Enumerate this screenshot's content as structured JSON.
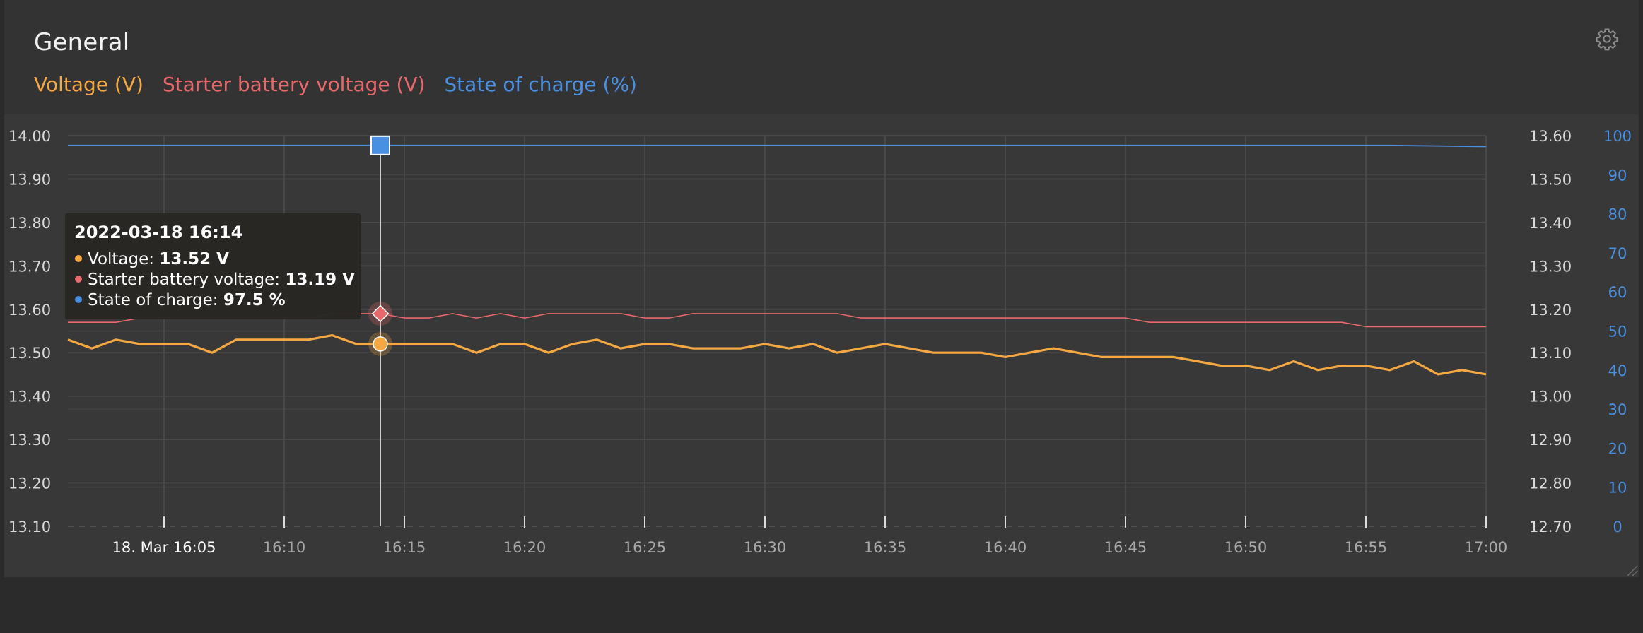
{
  "panel": {
    "title": "General",
    "settings_icon": "gear-icon"
  },
  "legend": [
    {
      "label": "Voltage (V)",
      "color": "#f5a742"
    },
    {
      "label": "Starter battery voltage (V)",
      "color": "#e8696b"
    },
    {
      "label": "State of charge (%)",
      "color": "#4a90e2"
    }
  ],
  "tooltip": {
    "title": "2022-03-18 16:14",
    "rows": [
      {
        "label": "Voltage: ",
        "value": "13.52 V",
        "color": "#f5a742"
      },
      {
        "label": "Starter battery voltage: ",
        "value": "13.19 V",
        "color": "#e8696b"
      },
      {
        "label": "State of charge: ",
        "value": "97.5 %",
        "color": "#4a90e2"
      }
    ]
  },
  "chart_data": {
    "type": "line",
    "x_tick_labels": [
      "18. Mar 16:05",
      "16:10",
      "16:15",
      "16:20",
      "16:25",
      "16:30",
      "16:35",
      "16:40",
      "16:45",
      "16:50",
      "16:55",
      "17:00"
    ],
    "x_tick_minutes": [
      5,
      10,
      15,
      20,
      25,
      30,
      35,
      40,
      45,
      50,
      55,
      60
    ],
    "x_range": [
      "16:01",
      "17:00"
    ],
    "cursor_time": "16:14",
    "axes": {
      "left": {
        "range": [
          13.1,
          14.0
        ],
        "ticks": [
          "13.10",
          "13.20",
          "13.30",
          "13.40",
          "13.50",
          "13.60",
          "13.70",
          "13.80",
          "13.90",
          "14.00"
        ]
      },
      "right": {
        "range": [
          12.7,
          13.6
        ],
        "ticks": [
          "12.70",
          "12.80",
          "12.90",
          "13.00",
          "13.10",
          "13.20",
          "13.30",
          "13.40",
          "13.50",
          "13.60"
        ]
      },
      "soc": {
        "range": [
          0,
          100
        ],
        "ticks": [
          "0",
          "10",
          "20",
          "30",
          "40",
          "50",
          "60",
          "70",
          "80",
          "90",
          "100"
        ]
      }
    },
    "grid": true,
    "series": [
      {
        "name": "Voltage (V)",
        "axis": "left",
        "color": "#f5a742",
        "x": [
          1,
          2,
          3,
          4,
          5,
          6,
          7,
          8,
          9,
          10,
          11,
          12,
          13,
          14,
          15,
          16,
          17,
          18,
          19,
          20,
          21,
          22,
          23,
          24,
          25,
          26,
          27,
          28,
          29,
          30,
          31,
          32,
          33,
          34,
          35,
          36,
          37,
          38,
          39,
          40,
          41,
          42,
          43,
          44,
          45,
          46,
          47,
          48,
          49,
          50,
          51,
          52,
          53,
          54,
          55,
          56,
          57,
          58,
          59,
          60
        ],
        "y": [
          13.53,
          13.51,
          13.53,
          13.52,
          13.52,
          13.52,
          13.5,
          13.53,
          13.53,
          13.53,
          13.53,
          13.54,
          13.52,
          13.52,
          13.52,
          13.52,
          13.52,
          13.5,
          13.52,
          13.52,
          13.5,
          13.52,
          13.53,
          13.51,
          13.52,
          13.52,
          13.51,
          13.51,
          13.51,
          13.52,
          13.51,
          13.52,
          13.5,
          13.51,
          13.52,
          13.51,
          13.5,
          13.5,
          13.5,
          13.49,
          13.5,
          13.51,
          13.5,
          13.49,
          13.49,
          13.49,
          13.49,
          13.48,
          13.47,
          13.47,
          13.46,
          13.48,
          13.46,
          13.47,
          13.47,
          13.46,
          13.48,
          13.45,
          13.46,
          13.45
        ]
      },
      {
        "name": "Starter battery voltage (V)",
        "axis": "right",
        "color": "#e8696b",
        "x": [
          1,
          2,
          3,
          4,
          5,
          6,
          7,
          8,
          9,
          10,
          11,
          12,
          13,
          14,
          15,
          16,
          17,
          18,
          19,
          20,
          21,
          22,
          23,
          24,
          25,
          26,
          27,
          28,
          29,
          30,
          31,
          32,
          33,
          34,
          35,
          36,
          37,
          38,
          39,
          40,
          41,
          42,
          43,
          44,
          45,
          46,
          47,
          48,
          49,
          50,
          51,
          52,
          53,
          54,
          55,
          56,
          57,
          58,
          59,
          60
        ],
        "y": [
          13.17,
          13.17,
          13.17,
          13.18,
          13.18,
          13.18,
          13.18,
          13.18,
          13.18,
          13.18,
          13.18,
          13.19,
          13.19,
          13.19,
          13.18,
          13.18,
          13.19,
          13.18,
          13.19,
          13.18,
          13.19,
          13.19,
          13.19,
          13.19,
          13.18,
          13.18,
          13.19,
          13.19,
          13.19,
          13.19,
          13.19,
          13.19,
          13.19,
          13.18,
          13.18,
          13.18,
          13.18,
          13.18,
          13.18,
          13.18,
          13.18,
          13.18,
          13.18,
          13.18,
          13.18,
          13.17,
          13.17,
          13.17,
          13.17,
          13.17,
          13.17,
          13.17,
          13.17,
          13.17,
          13.16,
          13.16,
          13.16,
          13.16,
          13.16,
          13.16
        ]
      },
      {
        "name": "State of charge (%)",
        "axis": "soc",
        "color": "#4a90e2",
        "x": [
          1,
          14,
          56,
          60
        ],
        "y": [
          97.5,
          97.5,
          97.5,
          97.2
        ]
      }
    ],
    "highlight_points": [
      {
        "series": "Voltage (V)",
        "x": 14,
        "y": 13.52
      },
      {
        "series": "Starter battery voltage (V)",
        "x": 14,
        "y": 13.19
      },
      {
        "series": "State of charge (%)",
        "x": 14,
        "y": 97.5
      }
    ]
  }
}
